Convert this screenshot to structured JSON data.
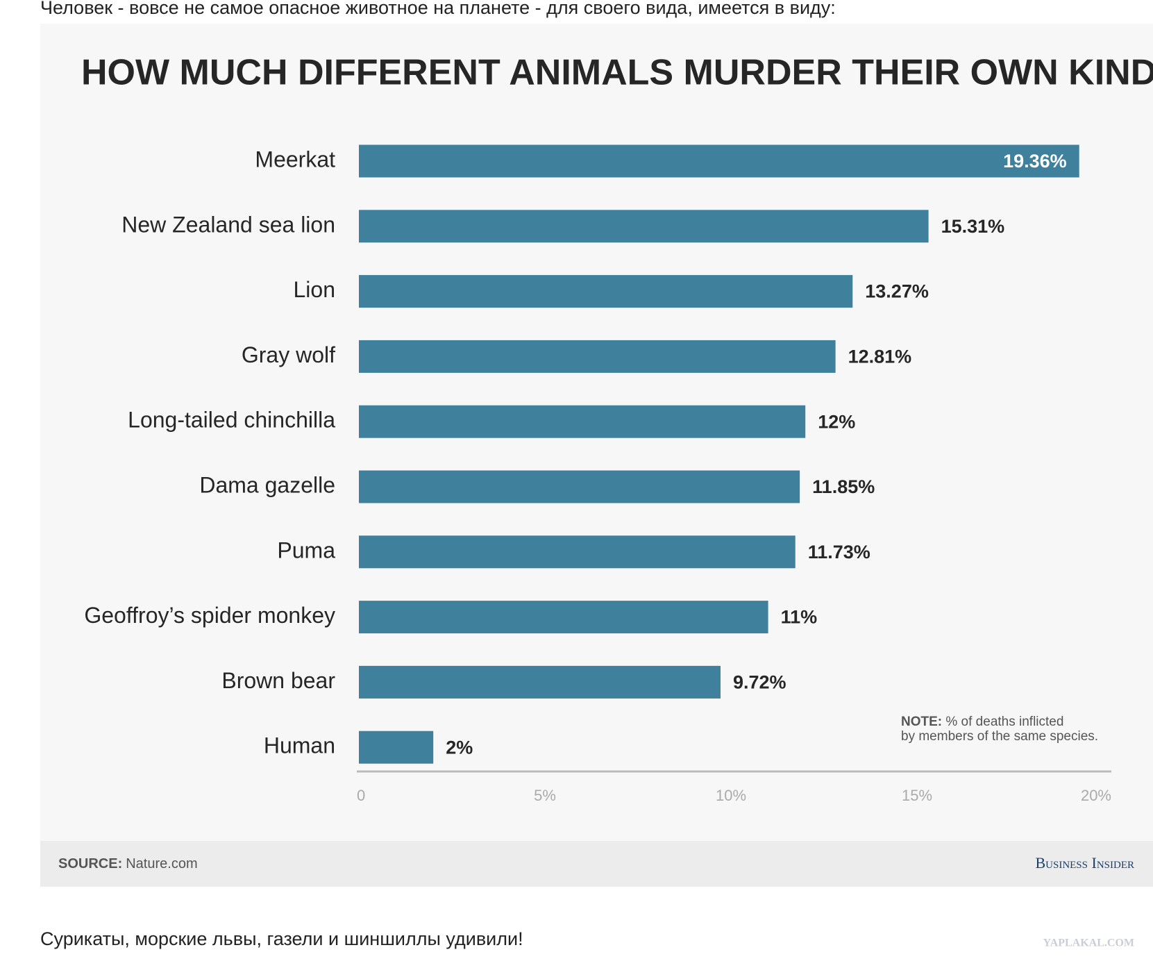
{
  "intro": "Человек - вовсе не самое опасное животное на планете - для своего вида, имеется в виду:",
  "chart_data": {
    "type": "bar",
    "orientation": "horizontal",
    "title": "HOW MUCH DIFFERENT ANIMALS MURDER THEIR OWN KIND",
    "categories": [
      "Meerkat",
      "New Zealand sea lion",
      "Lion",
      "Gray wolf",
      "Long-tailed chinchilla",
      "Dama gazelle",
      "Puma",
      "Geoffroy’s spider monkey",
      "Brown bear",
      "Human"
    ],
    "values": [
      19.36,
      15.31,
      13.27,
      12.81,
      12,
      11.85,
      11.73,
      11,
      9.72,
      2
    ],
    "value_labels": [
      "19.36%",
      "15.31%",
      "13.27%",
      "12.81%",
      "12%",
      "11.85%",
      "11.73%",
      "11%",
      "9.72%",
      "2%"
    ],
    "color": "#3f819c",
    "xlim": [
      0,
      20
    ],
    "xticks": [
      0,
      {
        "value": 5,
        "label": "5%"
      },
      {
        "value": 10,
        "label": "10%"
      },
      {
        "value": 15,
        "label": "15%"
      },
      {
        "value": 20,
        "label": "20%"
      }
    ],
    "note_label": "NOTE:",
    "note": "% of deaths inflicted by members of the same species.",
    "source_label": "SOURCE:",
    "source": "Nature.com",
    "brand": "Business Insider"
  },
  "footer": "Сурикаты, морские львы, газели и шиншиллы удивили!",
  "watermark": "YAPLAKAL.COM"
}
